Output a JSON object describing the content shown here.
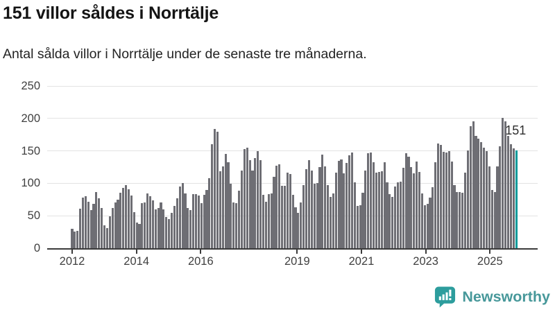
{
  "header": {
    "title": "151 villor såldes i Norrtälje",
    "subtitle": "Antal sålda villor i Norrtälje under de senaste tre månaderna."
  },
  "chart_data": {
    "type": "bar",
    "title": "151 villor såldes i Norrtälje",
    "subtitle": "Antal sålda villor i Norrtälje under de senaste tre månaderna.",
    "unit": "antal sålda villor",
    "frequency": "monthly",
    "x_start": "2012-01",
    "x_end": "2025-10",
    "ylim": [
      0,
      250
    ],
    "y_ticks": [
      0,
      50,
      100,
      150,
      200,
      250
    ],
    "x_ticks": [
      2012,
      2014,
      2016,
      2019,
      2021,
      2023,
      2025
    ],
    "grid": "horizontal",
    "legend": "none",
    "annotation": {
      "label": "151"
    },
    "highlight": {
      "index": 165,
      "value": 151
    },
    "series": [
      {
        "name": "Antal sålda villor, rullande tre månader",
        "values": [
          30,
          26,
          27,
          61,
          78,
          80,
          72,
          59,
          68,
          87,
          77,
          62,
          35,
          31,
          49,
          62,
          70,
          75,
          86,
          93,
          97,
          91,
          81,
          56,
          40,
          37,
          69,
          71,
          84,
          80,
          74,
          60,
          62,
          71,
          60,
          48,
          45,
          54,
          65,
          77,
          95,
          100,
          84,
          62,
          59,
          83,
          83,
          81,
          69,
          82,
          90,
          108,
          160,
          184,
          180,
          119,
          126,
          145,
          132,
          99,
          70,
          69,
          89,
          120,
          153,
          155,
          136,
          120,
          139,
          150,
          136,
          82,
          72,
          83,
          84,
          110,
          127,
          129,
          96,
          96,
          116,
          114,
          82,
          63,
          54,
          70,
          97,
          122,
          136,
          120,
          99,
          100,
          125,
          144,
          126,
          97,
          79,
          84,
          117,
          135,
          137,
          115,
          131,
          143,
          147,
          102,
          65,
          66,
          86,
          120,
          146,
          147,
          132,
          116,
          118,
          119,
          133,
          101,
          83,
          79,
          95,
          101,
          103,
          124,
          146,
          141,
          125,
          115,
          134,
          118,
          84,
          66,
          68,
          78,
          94,
          133,
          161,
          159,
          148,
          147,
          150,
          134,
          97,
          87,
          87,
          86,
          117,
          151,
          188,
          196,
          173,
          169,
          163,
          155,
          150,
          126,
          90,
          87,
          126,
          157,
          201,
          196,
          173,
          160,
          154,
          151
        ]
      }
    ]
  },
  "colors": {
    "bar": "#6e6e74",
    "highlight": "#009a9a",
    "grid": "#e3e3e3",
    "axis": "#3b3b3b",
    "tick_label": "#3f3f3f",
    "title": "#141414",
    "annotation": "#2e2e2e",
    "logo": "#2d9d9d",
    "logo_text": "#47989a"
  },
  "footer": {
    "brand": "Newsworthy"
  }
}
